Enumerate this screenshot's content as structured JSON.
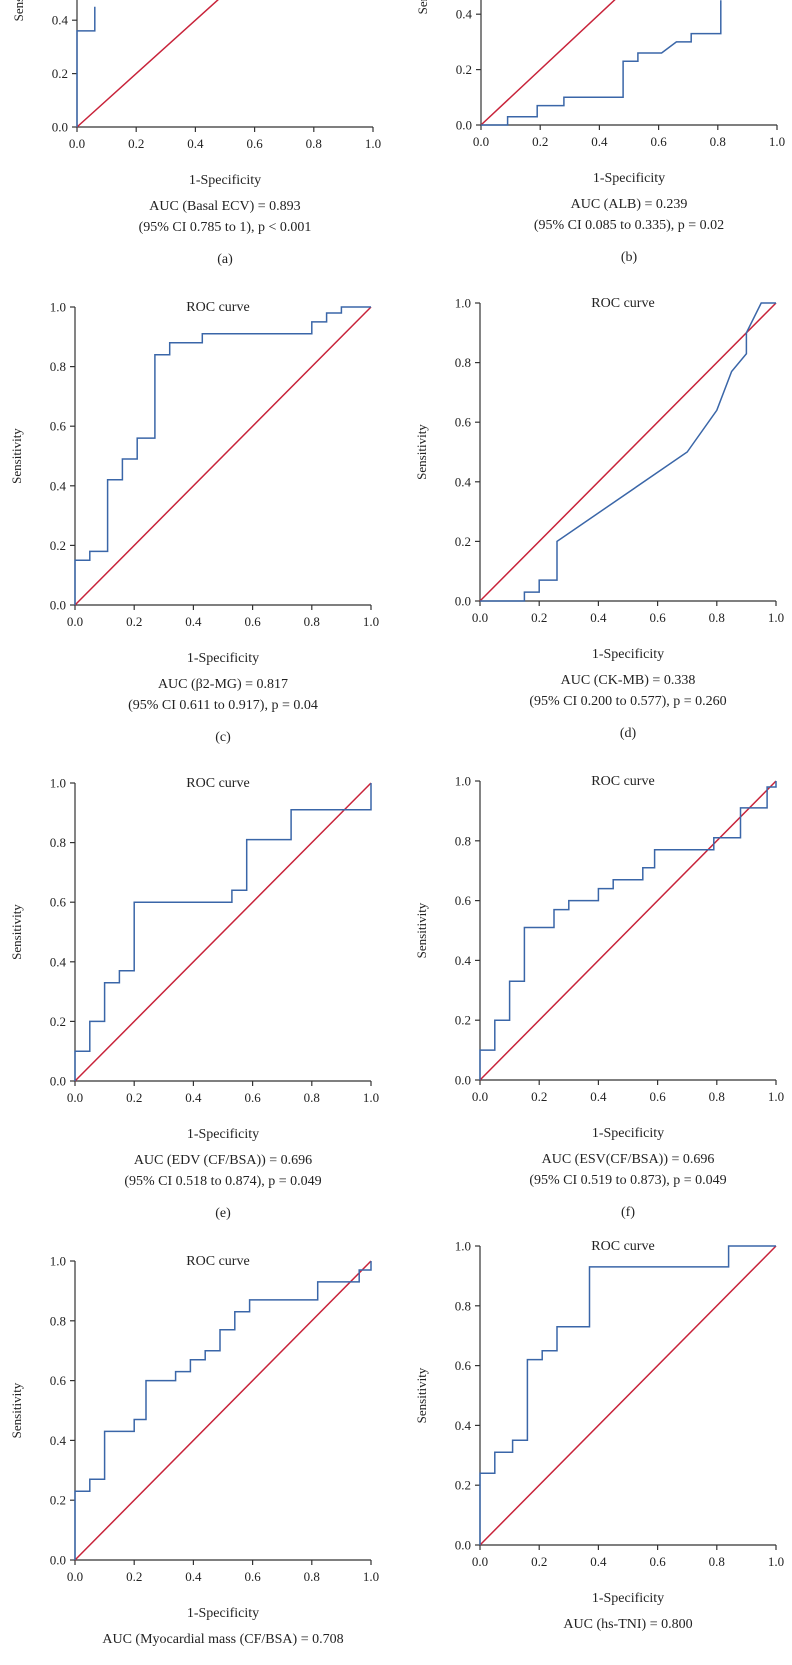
{
  "chart_data": [
    {
      "type": "line",
      "panel_label": "(a)",
      "title": "",
      "xlabel": "1-Specificity",
      "ylabel": "Sensitivity",
      "auc_text": "AUC (Basal ECV) = 0.893",
      "ci_text": "(95% CI 0.785 to 1), p < 0.001",
      "xlim": [
        0,
        1
      ],
      "ylim": [
        0,
        1
      ],
      "x_ticks": [
        "0.0",
        "0.2",
        "0.4",
        "0.6",
        "0.8",
        "1.0"
      ],
      "y_ticks": [
        "0.0",
        "0.2",
        "0.4"
      ],
      "roc": [
        [
          0,
          0
        ],
        [
          0,
          0.36
        ],
        [
          0.06,
          0.36
        ],
        [
          0.06,
          0.45
        ]
      ],
      "reference": [
        [
          0,
          0
        ],
        [
          1,
          1
        ]
      ],
      "colors": {
        "roc": "#3a66a8",
        "reference": "#c8233a",
        "axis": "#333333"
      }
    },
    {
      "type": "line",
      "panel_label": "(b)",
      "title": "",
      "xlabel": "1-Specificity",
      "ylabel": "Sensitivity",
      "auc_text": "AUC (ALB) = 0.239",
      "ci_text": "(95% CI 0.085 to 0.335), p = 0.02",
      "xlim": [
        0,
        1
      ],
      "ylim": [
        0,
        1
      ],
      "x_ticks": [
        "0.0",
        "0.2",
        "0.4",
        "0.6",
        "0.8",
        "1.0"
      ],
      "y_ticks": [
        "0.0",
        "0.2",
        "0.4"
      ],
      "roc": [
        [
          0,
          0
        ],
        [
          0.09,
          0
        ],
        [
          0.09,
          0.03
        ],
        [
          0.19,
          0.03
        ],
        [
          0.19,
          0.07
        ],
        [
          0.28,
          0.07
        ],
        [
          0.28,
          0.1
        ],
        [
          0.48,
          0.1
        ],
        [
          0.48,
          0.23
        ],
        [
          0.53,
          0.23
        ],
        [
          0.53,
          0.26
        ],
        [
          0.61,
          0.26
        ],
        [
          0.66,
          0.3
        ],
        [
          0.71,
          0.3
        ],
        [
          0.71,
          0.33
        ],
        [
          0.81,
          0.33
        ],
        [
          0.81,
          0.45
        ]
      ],
      "reference": [
        [
          0,
          0
        ],
        [
          1,
          1
        ]
      ],
      "colors": {
        "roc": "#3a66a8",
        "reference": "#c8233a",
        "axis": "#333333"
      }
    },
    {
      "type": "line",
      "panel_label": "(c)",
      "title": "ROC curve",
      "xlabel": "1-Specificity",
      "ylabel": "Sensitivity",
      "auc_text": "AUC (β2-MG) = 0.817",
      "ci_text": "(95% CI 0.611 to 0.917), p = 0.04",
      "xlim": [
        0,
        1
      ],
      "ylim": [
        0,
        1
      ],
      "x_ticks": [
        "0.0",
        "0.2",
        "0.4",
        "0.6",
        "0.8",
        "1.0"
      ],
      "y_ticks": [
        "0.0",
        "0.2",
        "0.4",
        "0.6",
        "0.8",
        "1.0"
      ],
      "roc": [
        [
          0,
          0
        ],
        [
          0,
          0.15
        ],
        [
          0.05,
          0.15
        ],
        [
          0.05,
          0.18
        ],
        [
          0.11,
          0.18
        ],
        [
          0.11,
          0.42
        ],
        [
          0.16,
          0.42
        ],
        [
          0.16,
          0.49
        ],
        [
          0.21,
          0.49
        ],
        [
          0.21,
          0.56
        ],
        [
          0.27,
          0.56
        ],
        [
          0.27,
          0.84
        ],
        [
          0.32,
          0.84
        ],
        [
          0.32,
          0.88
        ],
        [
          0.43,
          0.88
        ],
        [
          0.43,
          0.91
        ],
        [
          0.8,
          0.91
        ],
        [
          0.8,
          0.95
        ],
        [
          0.85,
          0.95
        ],
        [
          0.85,
          0.98
        ],
        [
          0.9,
          0.98
        ],
        [
          0.9,
          1
        ],
        [
          1,
          1
        ]
      ],
      "reference": [
        [
          0,
          0
        ],
        [
          1,
          1
        ]
      ],
      "colors": {
        "roc": "#3a66a8",
        "reference": "#c8233a",
        "axis": "#333333"
      }
    },
    {
      "type": "line",
      "panel_label": "(d)",
      "title": "ROC curve",
      "xlabel": "1-Specificity",
      "ylabel": "Sensitivity",
      "auc_text": "AUC (CK-MB) = 0.338",
      "ci_text": "(95% CI 0.200 to 0.577), p = 0.260",
      "xlim": [
        0,
        1
      ],
      "ylim": [
        0,
        1
      ],
      "x_ticks": [
        "0.0",
        "0.2",
        "0.4",
        "0.6",
        "0.8",
        "1.0"
      ],
      "y_ticks": [
        "0.0",
        "0.2",
        "0.4",
        "0.6",
        "0.8",
        "1.0"
      ],
      "roc": [
        [
          0,
          0
        ],
        [
          0.15,
          0
        ],
        [
          0.15,
          0.03
        ],
        [
          0.2,
          0.03
        ],
        [
          0.2,
          0.07
        ],
        [
          0.26,
          0.07
        ],
        [
          0.26,
          0.2
        ],
        [
          0.7,
          0.5
        ],
        [
          0.8,
          0.64
        ],
        [
          0.85,
          0.77
        ],
        [
          0.9,
          0.83
        ],
        [
          0.9,
          0.9
        ],
        [
          0.95,
          1
        ],
        [
          1,
          1
        ]
      ],
      "reference": [
        [
          0,
          0
        ],
        [
          1,
          1
        ]
      ],
      "colors": {
        "roc": "#3a66a8",
        "reference": "#c8233a",
        "axis": "#333333"
      }
    },
    {
      "type": "line",
      "panel_label": "(e)",
      "title": "ROC curve",
      "xlabel": "1-Specificity",
      "ylabel": "Sensitivity",
      "auc_text": "AUC (EDV (CF/BSA)) = 0.696",
      "ci_text": "(95% CI 0.518 to 0.874), p = 0.049",
      "xlim": [
        0,
        1
      ],
      "ylim": [
        0,
        1
      ],
      "x_ticks": [
        "0.0",
        "0.2",
        "0.4",
        "0.6",
        "0.8",
        "1.0"
      ],
      "y_ticks": [
        "0.0",
        "0.2",
        "0.4",
        "0.6",
        "0.8",
        "1.0"
      ],
      "roc": [
        [
          0,
          0
        ],
        [
          0,
          0.1
        ],
        [
          0.05,
          0.1
        ],
        [
          0.05,
          0.2
        ],
        [
          0.1,
          0.2
        ],
        [
          0.1,
          0.33
        ],
        [
          0.15,
          0.33
        ],
        [
          0.15,
          0.37
        ],
        [
          0.2,
          0.37
        ],
        [
          0.2,
          0.6
        ],
        [
          0.53,
          0.6
        ],
        [
          0.53,
          0.64
        ],
        [
          0.58,
          0.64
        ],
        [
          0.58,
          0.81
        ],
        [
          0.73,
          0.81
        ],
        [
          0.73,
          0.91
        ],
        [
          1,
          0.91
        ],
        [
          1,
          1
        ]
      ],
      "reference": [
        [
          0,
          0
        ],
        [
          1,
          1
        ]
      ],
      "colors": {
        "roc": "#3a66a8",
        "reference": "#c8233a",
        "axis": "#333333"
      }
    },
    {
      "type": "line",
      "panel_label": "(f)",
      "title": "ROC curve",
      "xlabel": "1-Specificity",
      "ylabel": "Sensitivity",
      "auc_text": "AUC (ESV(CF/BSA)) = 0.696",
      "ci_text": "(95% CI 0.519 to 0.873), p = 0.049",
      "xlim": [
        0,
        1
      ],
      "ylim": [
        0,
        1
      ],
      "x_ticks": [
        "0.0",
        "0.2",
        "0.4",
        "0.6",
        "0.8",
        "1.0"
      ],
      "y_ticks": [
        "0.0",
        "0.2",
        "0.4",
        "0.6",
        "0.8",
        "1.0"
      ],
      "roc": [
        [
          0,
          0
        ],
        [
          0,
          0.1
        ],
        [
          0.05,
          0.1
        ],
        [
          0.05,
          0.2
        ],
        [
          0.1,
          0.2
        ],
        [
          0.1,
          0.33
        ],
        [
          0.15,
          0.33
        ],
        [
          0.15,
          0.51
        ],
        [
          0.25,
          0.51
        ],
        [
          0.25,
          0.57
        ],
        [
          0.3,
          0.57
        ],
        [
          0.3,
          0.6
        ],
        [
          0.4,
          0.6
        ],
        [
          0.4,
          0.64
        ],
        [
          0.45,
          0.64
        ],
        [
          0.45,
          0.67
        ],
        [
          0.55,
          0.67
        ],
        [
          0.55,
          0.71
        ],
        [
          0.59,
          0.71
        ],
        [
          0.59,
          0.77
        ],
        [
          0.79,
          0.77
        ],
        [
          0.79,
          0.81
        ],
        [
          0.88,
          0.81
        ],
        [
          0.88,
          0.91
        ],
        [
          0.97,
          0.91
        ],
        [
          0.97,
          0.98
        ],
        [
          1,
          0.98
        ],
        [
          1,
          1
        ]
      ],
      "reference": [
        [
          0,
          0
        ],
        [
          1,
          1
        ]
      ],
      "colors": {
        "roc": "#3a66a8",
        "reference": "#c8233a",
        "axis": "#333333"
      }
    },
    {
      "type": "line",
      "panel_label": "",
      "title": "ROC curve",
      "xlabel": "1-Specificity",
      "ylabel": "Sensitivity",
      "auc_text": "AUC (Myocardial mass (CF/BSA) = 0.708",
      "ci_text": "",
      "xlim": [
        0,
        1
      ],
      "ylim": [
        0,
        1
      ],
      "x_ticks": [
        "0.0",
        "0.2",
        "0.4",
        "0.6",
        "0.8",
        "1.0"
      ],
      "y_ticks": [
        "0.0",
        "0.2",
        "0.4",
        "0.6",
        "0.8",
        "1.0"
      ],
      "roc": [
        [
          0,
          0
        ],
        [
          0,
          0.23
        ],
        [
          0.05,
          0.23
        ],
        [
          0.05,
          0.27
        ],
        [
          0.1,
          0.27
        ],
        [
          0.1,
          0.43
        ],
        [
          0.2,
          0.43
        ],
        [
          0.2,
          0.47
        ],
        [
          0.24,
          0.47
        ],
        [
          0.24,
          0.6
        ],
        [
          0.34,
          0.6
        ],
        [
          0.34,
          0.63
        ],
        [
          0.39,
          0.63
        ],
        [
          0.39,
          0.67
        ],
        [
          0.44,
          0.67
        ],
        [
          0.44,
          0.7
        ],
        [
          0.49,
          0.7
        ],
        [
          0.49,
          0.77
        ],
        [
          0.54,
          0.77
        ],
        [
          0.54,
          0.83
        ],
        [
          0.59,
          0.83
        ],
        [
          0.59,
          0.87
        ],
        [
          0.82,
          0.87
        ],
        [
          0.82,
          0.93
        ],
        [
          0.96,
          0.93
        ],
        [
          0.96,
          0.97
        ],
        [
          1,
          0.97
        ],
        [
          1,
          1
        ]
      ],
      "reference": [
        [
          0,
          0
        ],
        [
          1,
          1
        ]
      ],
      "colors": {
        "roc": "#3a66a8",
        "reference": "#c8233a",
        "axis": "#333333"
      }
    },
    {
      "type": "line",
      "panel_label": "",
      "title": "ROC curve",
      "xlabel": "1-Specificity",
      "ylabel": "Sensitivity",
      "auc_text": "AUC (hs-TNI) = 0.800",
      "ci_text": "",
      "xlim": [
        0,
        1
      ],
      "ylim": [
        0,
        1
      ],
      "x_ticks": [
        "0.0",
        "0.2",
        "0.4",
        "0.6",
        "0.8",
        "1.0"
      ],
      "y_ticks": [
        "0.0",
        "0.2",
        "0.4",
        "0.6",
        "0.8",
        "1.0"
      ],
      "roc": [
        [
          0,
          0
        ],
        [
          0,
          0.24
        ],
        [
          0.05,
          0.24
        ],
        [
          0.05,
          0.31
        ],
        [
          0.11,
          0.31
        ],
        [
          0.11,
          0.35
        ],
        [
          0.16,
          0.35
        ],
        [
          0.16,
          0.62
        ],
        [
          0.21,
          0.62
        ],
        [
          0.21,
          0.65
        ],
        [
          0.26,
          0.65
        ],
        [
          0.26,
          0.73
        ],
        [
          0.37,
          0.73
        ],
        [
          0.37,
          0.93
        ],
        [
          0.84,
          0.93
        ],
        [
          0.84,
          1
        ],
        [
          1,
          1
        ]
      ],
      "reference": [
        [
          0,
          0
        ],
        [
          1,
          1
        ]
      ],
      "colors": {
        "roc": "#3a66a8",
        "reference": "#c8233a",
        "axis": "#333333"
      }
    }
  ]
}
